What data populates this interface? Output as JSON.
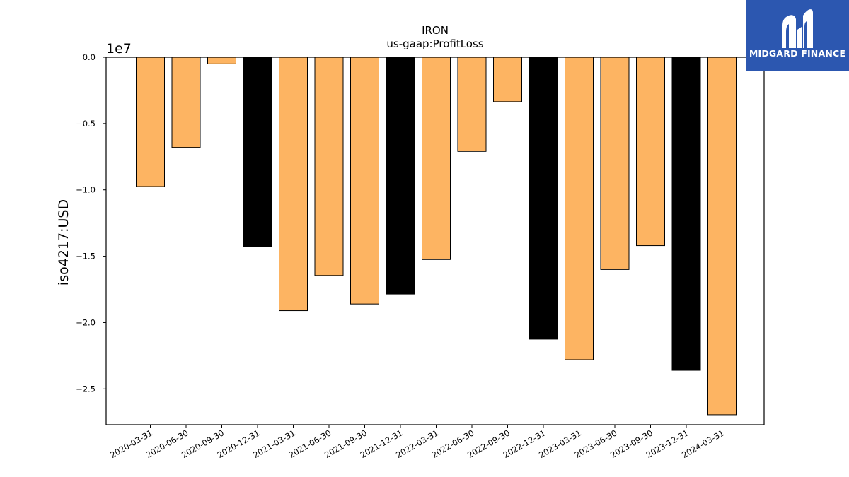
{
  "chart_data": {
    "type": "bar",
    "title": "IRON",
    "subtitle": "us-gaap:ProfitLoss",
    "xlabel": "",
    "ylabel": "iso4217:USD",
    "scale_label": "1e7",
    "categories": [
      "2020-03-31",
      "2020-06-30",
      "2020-09-30",
      "2020-12-31",
      "2021-03-31",
      "2021-06-30",
      "2021-09-30",
      "2021-12-31",
      "2022-03-31",
      "2022-06-30",
      "2022-09-30",
      "2022-12-31",
      "2023-03-31",
      "2023-06-30",
      "2023-09-30",
      "2023-12-31",
      "2024-03-31"
    ],
    "values": [
      -9750000,
      -6800000,
      -500000,
      -14300000,
      -19100000,
      -16450000,
      -18600000,
      -17850000,
      -15250000,
      -7100000,
      -3350000,
      -21250000,
      -22800000,
      -16000000,
      -14200000,
      -23600000,
      -26950000
    ],
    "bar_colors": [
      "#fdb462",
      "#fdb462",
      "#fdb462",
      "#000000",
      "#fdb462",
      "#fdb462",
      "#fdb462",
      "#000000",
      "#fdb462",
      "#fdb462",
      "#fdb462",
      "#000000",
      "#fdb462",
      "#fdb462",
      "#fdb462",
      "#000000",
      "#fdb462"
    ],
    "yticks": [
      0.0,
      -0.5,
      -1.0,
      -1.5,
      -2.0,
      -2.5
    ],
    "ytick_labels": [
      "0.0",
      "−0.5",
      "−1.0",
      "−1.5",
      "−2.0",
      "−2.5"
    ],
    "ylim": [
      -27700000,
      0
    ],
    "grid": false
  },
  "logo": {
    "text": "MIDGARD FINANCE",
    "background": "#2c57b0"
  }
}
